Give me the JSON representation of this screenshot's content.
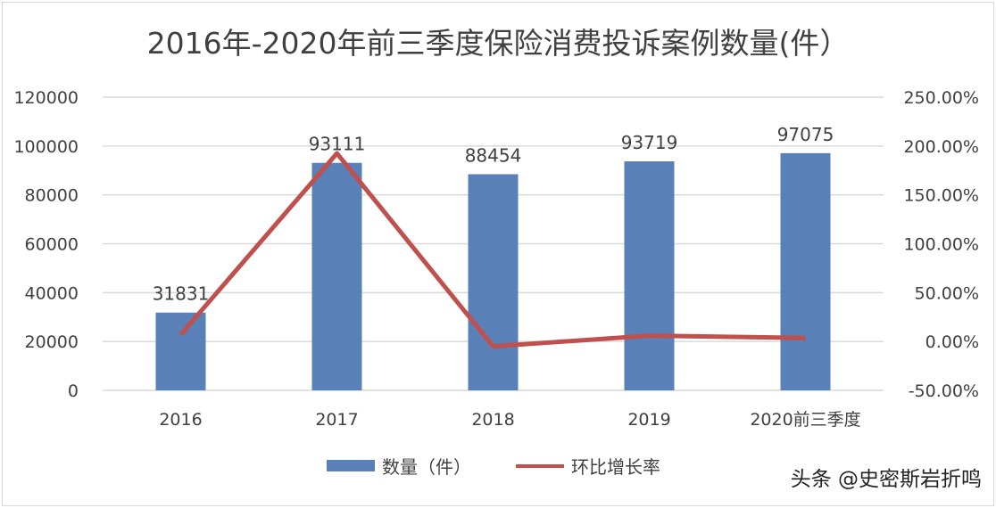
{
  "chart_data": {
    "type": "bar+line",
    "title": "2016年-2020年前三季度保险消费投诉案例数量(件）",
    "categories": [
      "2016",
      "2017",
      "2018",
      "2019",
      "2020前三季度"
    ],
    "series": [
      {
        "name": "数量（件）",
        "type": "bar",
        "axis": "left",
        "values": [
          31831,
          93111,
          88454,
          93719,
          97075
        ],
        "color": "#5a80b8"
      },
      {
        "name": "环比增长率",
        "type": "line",
        "axis": "right",
        "values": [
          7.0,
          192.5,
          -5.0,
          5.95,
          3.58
        ],
        "color": "#c0504d"
      }
    ],
    "data_labels": [
      "31831",
      "93111",
      "88454",
      "93719",
      "97075"
    ],
    "left_axis": {
      "ylim": [
        0,
        120000
      ],
      "ticks": [
        "0",
        "20000",
        "40000",
        "60000",
        "80000",
        "100000",
        "120000"
      ]
    },
    "right_axis": {
      "ylim": [
        -50,
        250
      ],
      "ticks": [
        "-50.00%",
        "0.00%",
        "50.00%",
        "100.00%",
        "150.00%",
        "200.00%",
        "250.00%"
      ]
    },
    "grid": true,
    "legend": "bottom"
  },
  "watermark": "头条 @史密斯岩折鸣"
}
